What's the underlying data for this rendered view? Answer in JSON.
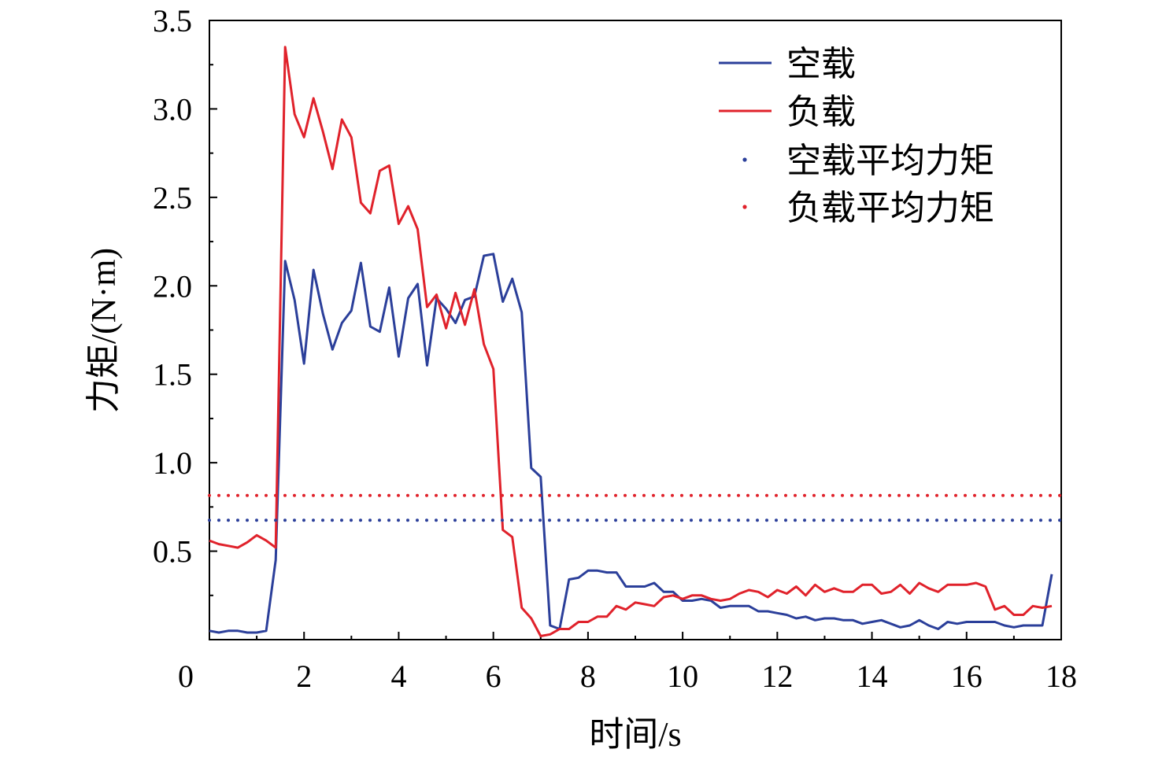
{
  "chart_data": {
    "type": "line",
    "xlabel": "时间/s",
    "ylabel": "力矩/(N·m)",
    "xlim": [
      0,
      18
    ],
    "ylim": [
      0,
      3.5
    ],
    "x_ticks": [
      "0",
      "2",
      "4",
      "6",
      "8",
      "10",
      "12",
      "14",
      "16",
      "18"
    ],
    "y_ticks": [
      "0.5",
      "1.0",
      "1.5",
      "2.0",
      "2.5",
      "3.0",
      "3.5"
    ],
    "grid": false,
    "legend_position": "top-right",
    "series": [
      {
        "name": "空载",
        "color": "#2b3f9a",
        "style": "solid",
        "x": [
          0,
          0.2,
          0.4,
          0.6,
          0.8,
          1.0,
          1.2,
          1.4,
          1.6,
          1.8,
          2.0,
          2.2,
          2.4,
          2.6,
          2.8,
          3.0,
          3.2,
          3.4,
          3.6,
          3.8,
          4.0,
          4.2,
          4.4,
          4.6,
          4.8,
          5.0,
          5.2,
          5.4,
          5.6,
          5.8,
          6.0,
          6.2,
          6.4,
          6.6,
          6.8,
          7.0,
          7.2,
          7.4,
          7.6,
          7.8,
          8.0,
          8.2,
          8.4,
          8.6,
          8.8,
          9.0,
          9.2,
          9.4,
          9.6,
          9.8,
          10.0,
          10.2,
          10.4,
          10.6,
          10.8,
          11.0,
          11.2,
          11.4,
          11.6,
          11.8,
          12.0,
          12.2,
          12.4,
          12.6,
          12.8,
          13.0,
          13.2,
          13.4,
          13.6,
          13.8,
          14.0,
          14.2,
          14.4,
          14.6,
          14.8,
          15.0,
          15.2,
          15.4,
          15.6,
          15.8,
          16.0,
          16.2,
          16.4,
          16.6,
          16.8,
          17.0,
          17.2,
          17.4,
          17.6,
          17.8
        ],
        "values": [
          0.05,
          0.04,
          0.05,
          0.05,
          0.04,
          0.04,
          0.05,
          0.45,
          2.14,
          1.92,
          1.56,
          2.09,
          1.84,
          1.64,
          1.79,
          1.86,
          2.13,
          1.77,
          1.74,
          1.99,
          1.6,
          1.93,
          2.01,
          1.55,
          1.93,
          1.87,
          1.79,
          1.92,
          1.94,
          2.17,
          2.18,
          1.91,
          2.04,
          1.85,
          0.97,
          0.92,
          0.08,
          0.06,
          0.34,
          0.35,
          0.39,
          0.39,
          0.38,
          0.38,
          0.3,
          0.3,
          0.3,
          0.32,
          0.27,
          0.27,
          0.22,
          0.22,
          0.23,
          0.22,
          0.18,
          0.19,
          0.19,
          0.19,
          0.16,
          0.16,
          0.15,
          0.14,
          0.12,
          0.13,
          0.11,
          0.12,
          0.12,
          0.11,
          0.11,
          0.09,
          0.1,
          0.11,
          0.09,
          0.07,
          0.08,
          0.11,
          0.08,
          0.06,
          0.1,
          0.09,
          0.1,
          0.1,
          0.1,
          0.1,
          0.08,
          0.07,
          0.08,
          0.08,
          0.08,
          0.37
        ]
      },
      {
        "name": "负载",
        "color": "#e0222b",
        "style": "solid",
        "x": [
          0,
          0.2,
          0.4,
          0.6,
          0.8,
          1.0,
          1.2,
          1.4,
          1.6,
          1.8,
          2.0,
          2.2,
          2.4,
          2.6,
          2.8,
          3.0,
          3.2,
          3.4,
          3.6,
          3.8,
          4.0,
          4.2,
          4.4,
          4.6,
          4.8,
          5.0,
          5.2,
          5.4,
          5.6,
          5.8,
          6.0,
          6.2,
          6.4,
          6.6,
          6.8,
          7.0,
          7.2,
          7.4,
          7.6,
          7.8,
          8.0,
          8.2,
          8.4,
          8.6,
          8.8,
          9.0,
          9.2,
          9.4,
          9.6,
          9.8,
          10.0,
          10.2,
          10.4,
          10.6,
          10.8,
          11.0,
          11.2,
          11.4,
          11.6,
          11.8,
          12.0,
          12.2,
          12.4,
          12.6,
          12.8,
          13.0,
          13.2,
          13.4,
          13.6,
          13.8,
          14.0,
          14.2,
          14.4,
          14.6,
          14.8,
          15.0,
          15.2,
          15.4,
          15.6,
          15.8,
          16.0,
          16.2,
          16.4,
          16.6,
          16.8,
          17.0,
          17.2,
          17.4,
          17.6,
          17.8
        ],
        "values": [
          0.56,
          0.54,
          0.53,
          0.52,
          0.55,
          0.59,
          0.56,
          0.52,
          3.35,
          2.97,
          2.84,
          3.06,
          2.87,
          2.66,
          2.94,
          2.84,
          2.47,
          2.41,
          2.65,
          2.68,
          2.35,
          2.45,
          2.32,
          1.88,
          1.95,
          1.76,
          1.96,
          1.78,
          1.98,
          1.67,
          1.53,
          0.62,
          0.58,
          0.18,
          0.12,
          0.02,
          0.03,
          0.06,
          0.06,
          0.1,
          0.1,
          0.13,
          0.13,
          0.19,
          0.17,
          0.21,
          0.2,
          0.19,
          0.24,
          0.25,
          0.23,
          0.25,
          0.25,
          0.23,
          0.22,
          0.23,
          0.26,
          0.28,
          0.27,
          0.24,
          0.28,
          0.26,
          0.3,
          0.25,
          0.31,
          0.27,
          0.29,
          0.27,
          0.27,
          0.31,
          0.31,
          0.26,
          0.27,
          0.31,
          0.26,
          0.32,
          0.29,
          0.27,
          0.31,
          0.31,
          0.31,
          0.32,
          0.3,
          0.17,
          0.19,
          0.14,
          0.14,
          0.19,
          0.18,
          0.19
        ]
      },
      {
        "name": "空载平均力矩",
        "color": "#2b3f9a",
        "style": "dotted",
        "x": [
          0,
          18
        ],
        "values": [
          0.675,
          0.675
        ]
      },
      {
        "name": "负载平均力矩",
        "color": "#e0222b",
        "style": "dotted",
        "x": [
          0,
          18
        ],
        "values": [
          0.815,
          0.815
        ]
      }
    ]
  }
}
